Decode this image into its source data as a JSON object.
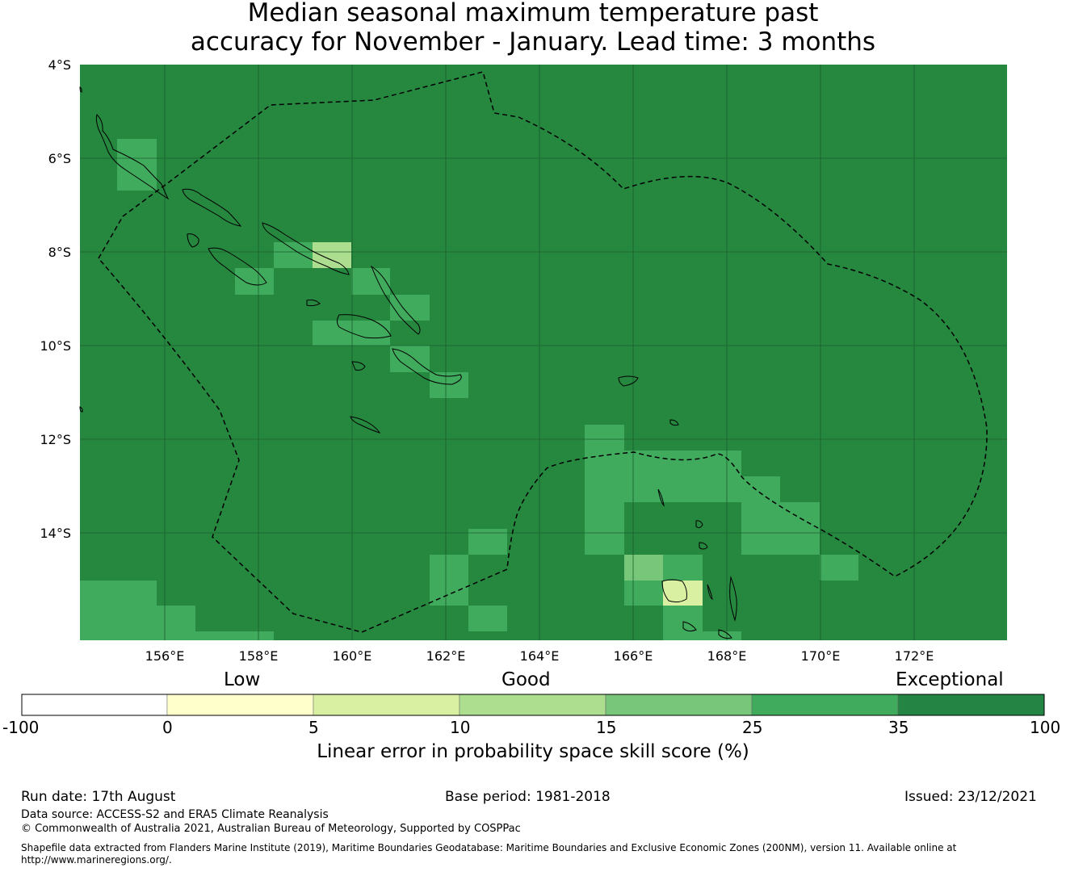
{
  "title": {
    "line1": "Median seasonal maximum temperature past",
    "line2": "accuracy for November - January. Lead time: 3 months"
  },
  "map": {
    "background_color": "#26873f",
    "lat_labels": [
      "4°S",
      "6°S",
      "8°S",
      "10°S",
      "12°S",
      "14°S"
    ],
    "lon_labels": [
      "156°E",
      "158°E",
      "160°E",
      "162°E",
      "164°E",
      "166°E",
      "168°E",
      "170°E",
      "172°E"
    ],
    "lat_range": [
      -16.3,
      -4.0
    ],
    "lon_range": [
      154.2,
      174.0
    ]
  },
  "colorbar": {
    "category_labels": [
      "Low",
      "Good",
      "Exceptional"
    ],
    "ticks": [
      "-100",
      "0",
      "5",
      "10",
      "15",
      "25",
      "35",
      "100"
    ],
    "colors": [
      "#ffffff",
      "#ffffcc",
      "#d9f0a3",
      "#addd8e",
      "#78c679",
      "#41ab5d",
      "#238443"
    ],
    "label": "Linear error in probability space skill score (%)"
  },
  "footer": {
    "run_date": "Run date: 17th August",
    "base_period": "Base period: 1981-2018",
    "issued": "Issued: 23/12/2021",
    "data_source": "Data source: ACCESS-S2 and ERA5 Climate Reanalysis",
    "copyright": "© Commonwealth of Australia 2021, Australian Bureau of Meteorology, Supported by COSPPac",
    "shapefile_line1": "Shapefile data extracted from Flanders Marine Institute (2019), Maritime Boundaries Geodatabase: Maritime Boundaries and Exclusive Economic Zones (200NM), version 11. Available online at",
    "shapefile_line2": "http://www.marineregions.org/."
  }
}
